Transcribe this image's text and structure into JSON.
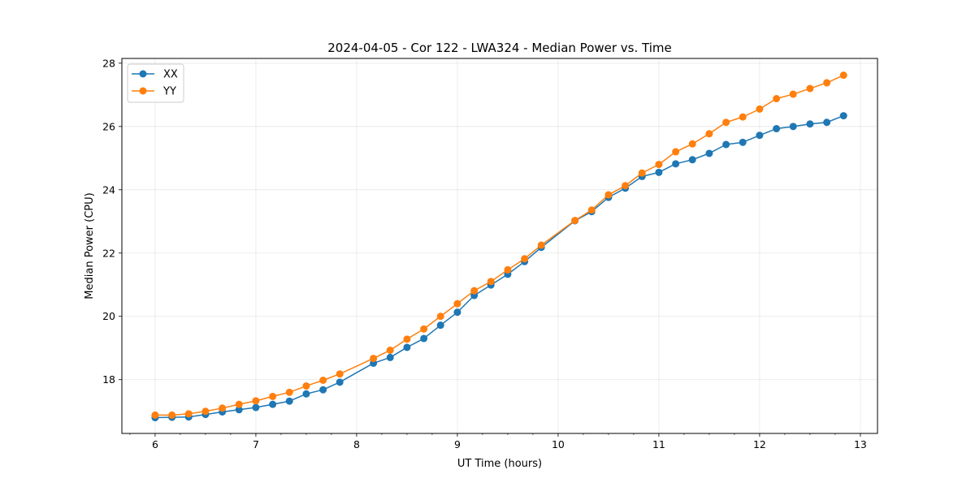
{
  "chart_data": {
    "type": "line",
    "title": "2024-04-05 - Cor 122 - LWA324 - Median Power vs. Time",
    "xlabel": "UT Time (hours)",
    "ylabel": "Median Power (CPU)",
    "xlim": [
      5.67,
      13.17
    ],
    "ylim": [
      16.3,
      28.15
    ],
    "xticks": [
      6,
      7,
      8,
      9,
      10,
      11,
      12,
      13
    ],
    "xtick_labels": [
      "6",
      "7",
      "8",
      "9",
      "10",
      "11",
      "12",
      "13"
    ],
    "yticks": [
      18,
      20,
      22,
      24,
      26,
      28
    ],
    "ytick_labels": [
      "18",
      "20",
      "22",
      "24",
      "26",
      "28"
    ],
    "grid": true,
    "legend_position": "top-left",
    "series": [
      {
        "name": "XX",
        "color": "#1f77b4",
        "x": [
          6.0,
          6.167,
          6.333,
          6.5,
          6.667,
          6.833,
          7.0,
          7.167,
          7.333,
          7.5,
          7.667,
          7.833,
          8.167,
          8.333,
          8.5,
          8.667,
          8.833,
          9.0,
          9.167,
          9.333,
          9.5,
          9.667,
          9.833,
          10.167,
          10.333,
          10.5,
          10.667,
          10.833,
          11.0,
          11.167,
          11.333,
          11.5,
          11.667,
          11.833,
          12.0,
          12.167,
          12.333,
          12.5,
          12.667,
          12.833
        ],
        "y": [
          16.8,
          16.81,
          16.82,
          16.9,
          16.98,
          17.05,
          17.12,
          17.22,
          17.32,
          17.55,
          17.68,
          17.92,
          18.52,
          18.7,
          19.02,
          19.3,
          19.72,
          20.13,
          20.66,
          20.99,
          21.33,
          21.73,
          22.18,
          23.02,
          23.31,
          23.76,
          24.05,
          24.42,
          24.55,
          24.82,
          24.95,
          25.15,
          25.43,
          25.5,
          25.72,
          25.93,
          26.0,
          26.08,
          26.13,
          26.34
        ]
      },
      {
        "name": "YY",
        "color": "#ff7f0e",
        "x": [
          6.0,
          6.167,
          6.333,
          6.5,
          6.667,
          6.833,
          7.0,
          7.167,
          7.333,
          7.5,
          7.667,
          7.833,
          8.167,
          8.333,
          8.5,
          8.667,
          8.833,
          9.0,
          9.167,
          9.333,
          9.5,
          9.667,
          9.833,
          10.167,
          10.333,
          10.5,
          10.667,
          10.833,
          11.0,
          11.167,
          11.333,
          11.5,
          11.667,
          11.833,
          12.0,
          12.167,
          12.333,
          12.5,
          12.667,
          12.833
        ],
        "y": [
          16.88,
          16.88,
          16.92,
          17.0,
          17.1,
          17.22,
          17.33,
          17.47,
          17.6,
          17.8,
          17.98,
          18.18,
          18.67,
          18.93,
          19.28,
          19.6,
          20.0,
          20.4,
          20.81,
          21.1,
          21.47,
          21.82,
          22.25,
          23.03,
          23.36,
          23.84,
          24.13,
          24.53,
          24.8,
          25.2,
          25.45,
          25.77,
          26.13,
          26.3,
          26.55,
          26.88,
          27.02,
          27.2,
          27.38,
          27.62
        ]
      }
    ]
  }
}
